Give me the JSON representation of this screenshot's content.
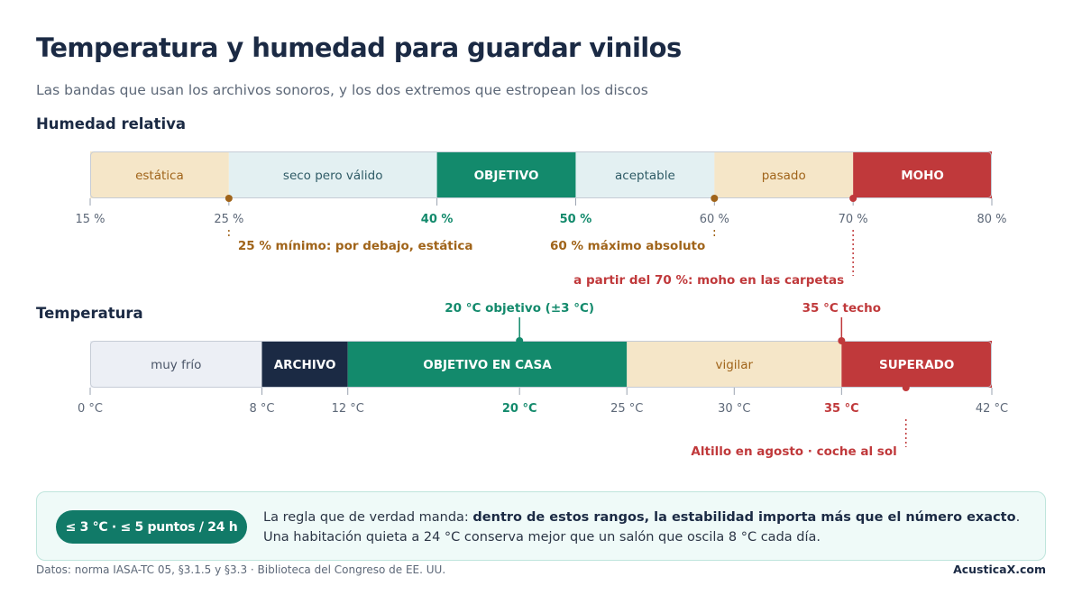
{
  "header": {
    "title": "Temperatura y humedad para guardar vinilos",
    "subtitle": "Las bandas que usan los archivos sonoros, y los dos extremos que estropean los discos"
  },
  "colors": {
    "beige": "#f5e6c8",
    "light_blue": "#e3f0f2",
    "green": "#138a6c",
    "red": "#c0393b",
    "navy": "#1b2a44",
    "gray_light": "#eceff5",
    "amber": "#a0641a",
    "gray_text": "#5d6878"
  },
  "chart_data": [
    {
      "type": "bar",
      "title": "Humedad relativa",
      "xlim": [
        15,
        80
      ],
      "unit": "%",
      "bands": [
        {
          "from": 15,
          "to": 25,
          "label": "estática",
          "style": "beige"
        },
        {
          "from": 25,
          "to": 40,
          "label": "seco pero válido",
          "style": "light_blue"
        },
        {
          "from": 40,
          "to": 50,
          "label": "OBJETIVO",
          "style": "green"
        },
        {
          "from": 50,
          "to": 60,
          "label": "aceptable",
          "style": "light_blue"
        },
        {
          "from": 60,
          "to": 70,
          "label": "pasado",
          "style": "beige"
        },
        {
          "from": 70,
          "to": 80,
          "label": "MOHO",
          "style": "red"
        }
      ],
      "ticks": [
        {
          "value": 15,
          "label": "15 %",
          "style": "normal"
        },
        {
          "value": 25,
          "label": "25 %",
          "style": "normal"
        },
        {
          "value": 40,
          "label": "40 %",
          "style": "green"
        },
        {
          "value": 50,
          "label": "50 %",
          "style": "green"
        },
        {
          "value": 60,
          "label": "60 %",
          "style": "normal"
        },
        {
          "value": 70,
          "label": "70 %",
          "style": "normal"
        },
        {
          "value": 80,
          "label": "80 %",
          "style": "normal"
        }
      ],
      "annotations": [
        {
          "value": 25,
          "text": "25 % mínimo: por debajo, estática",
          "color": "amber",
          "side": "below",
          "level": 1,
          "anchor": "start"
        },
        {
          "value": 60,
          "text": "60 % máximo absoluto",
          "color": "amber",
          "side": "below",
          "level": 1,
          "anchor": "end"
        },
        {
          "value": 70,
          "text": "a partir del 70 %: moho en las carpetas",
          "color": "red",
          "side": "below",
          "level": 2,
          "anchor": "end"
        }
      ]
    },
    {
      "type": "bar",
      "title": "Temperatura",
      "xlim": [
        0,
        42
      ],
      "unit": "°C",
      "bands": [
        {
          "from": 0,
          "to": 8,
          "label": "muy frío",
          "style": "gray_light"
        },
        {
          "from": 8,
          "to": 12,
          "label": "ARCHIVO",
          "style": "navy"
        },
        {
          "from": 12,
          "to": 25,
          "label": "OBJETIVO EN CASA",
          "style": "green"
        },
        {
          "from": 25,
          "to": 35,
          "label": "vigilar",
          "style": "beige"
        },
        {
          "from": 35,
          "to": 42,
          "label": "SUPERADO",
          "style": "red"
        }
      ],
      "ticks": [
        {
          "value": 0,
          "label": "0 °C",
          "style": "normal"
        },
        {
          "value": 8,
          "label": "8 °C",
          "style": "normal"
        },
        {
          "value": 12,
          "label": "12 °C",
          "style": "normal"
        },
        {
          "value": 20,
          "label": "20 °C",
          "style": "green"
        },
        {
          "value": 25,
          "label": "25 °C",
          "style": "normal"
        },
        {
          "value": 30,
          "label": "30 °C",
          "style": "normal"
        },
        {
          "value": 35,
          "label": "35 °C",
          "style": "red"
        },
        {
          "value": 42,
          "label": "42 °C",
          "style": "normal"
        }
      ],
      "annotations": [
        {
          "value": 20,
          "text": "20 °C objetivo (±3 °C)",
          "color": "green",
          "side": "above",
          "level": 1,
          "anchor": "middle"
        },
        {
          "value": 35,
          "text": "35 °C techo",
          "color": "red",
          "side": "above",
          "level": 1,
          "anchor": "middle"
        },
        {
          "value": 38,
          "text": "Altillo en agosto · coche al sol",
          "color": "red",
          "side": "below",
          "level": 2,
          "anchor": "end"
        }
      ]
    }
  ],
  "callout": {
    "badge": "≤ 3 °C · ≤ 5 puntos / 24 h",
    "line1_prefix": "La regla que de verdad manda: ",
    "line1_bold": "dentro de estos rangos, la estabilidad importa más que el número exacto",
    "line1_suffix": ".",
    "line2": "Una habitación quieta a 24 °C conserva mejor que un salón que oscila 8 °C cada día."
  },
  "footer": {
    "source": "Datos: norma IASA-TC 05, §3.1.5 y §3.3 · Biblioteca del Congreso de EE. UU.",
    "brand": "AcusticaX.com"
  }
}
